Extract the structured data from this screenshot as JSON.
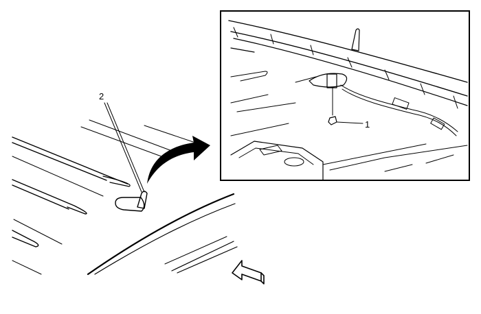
{
  "diagram": {
    "callouts": [
      {
        "id": "1",
        "text": "1"
      },
      {
        "id": "2",
        "text": "2"
      }
    ],
    "colors": {
      "line": "#000000",
      "background": "#ffffff"
    }
  }
}
